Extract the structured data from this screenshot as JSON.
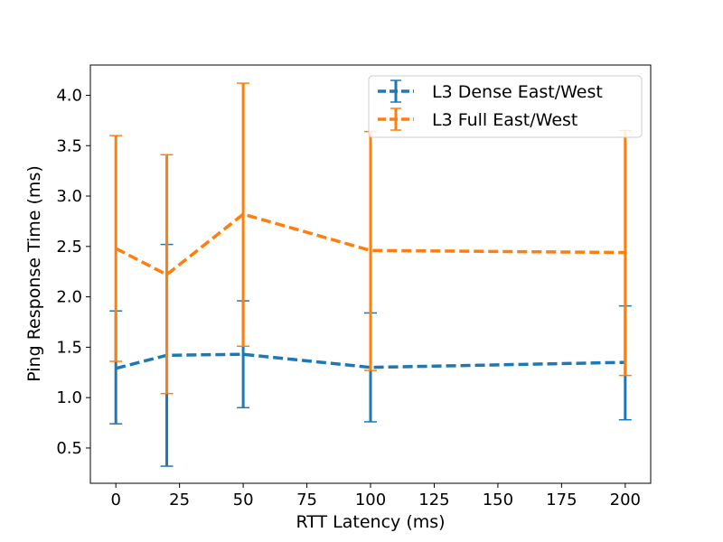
{
  "chart_data": {
    "type": "line",
    "title": "",
    "xlabel": "RTT Latency (ms)",
    "ylabel": "Ping Response Time (ms)",
    "xlim": [
      -10,
      210
    ],
    "ylim": [
      0.15,
      4.3
    ],
    "xticks": [
      0,
      25,
      50,
      75,
      100,
      125,
      150,
      175,
      200
    ],
    "yticks": [
      0.5,
      1.0,
      1.5,
      2.0,
      2.5,
      3.0,
      3.5,
      4.0
    ],
    "xtick_labels": [
      "0",
      "25",
      "50",
      "75",
      "100",
      "125",
      "150",
      "175",
      "200"
    ],
    "ytick_labels": [
      "0.5",
      "1.0",
      "1.5",
      "2.0",
      "2.5",
      "3.0",
      "3.5",
      "4.0"
    ],
    "grid": false,
    "legend_position": "upper right",
    "x": [
      0,
      20,
      50,
      100,
      200
    ],
    "series": [
      {
        "name": "L3 Dense East/West",
        "color": "#1f77b4",
        "line_style": "dashed",
        "values": [
          1.29,
          1.42,
          1.43,
          1.3,
          1.35
        ],
        "error_low": [
          0.74,
          0.32,
          0.9,
          0.76,
          0.78
        ],
        "error_high": [
          1.86,
          2.52,
          1.96,
          1.84,
          1.91
        ]
      },
      {
        "name": "L3 Full East/West",
        "color": "#ff7f0e",
        "line_style": "dashed",
        "values": [
          2.48,
          2.22,
          2.82,
          2.46,
          2.44
        ],
        "error_low": [
          1.36,
          1.04,
          1.51,
          1.27,
          1.22
        ],
        "error_high": [
          3.6,
          3.41,
          4.12,
          3.64,
          3.65
        ]
      }
    ]
  }
}
